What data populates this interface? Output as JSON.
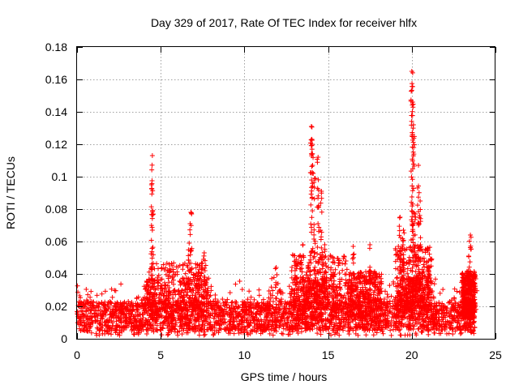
{
  "chart_data": {
    "type": "scatter",
    "title": "Day 329 of 2017, Rate Of TEC Index for receiver hlfx",
    "xlabel": "GPS time / hours",
    "ylabel": "ROTI / TECUs",
    "xlim": [
      0,
      25
    ],
    "ylim": [
      0,
      0.18
    ],
    "x_ticks": [
      0,
      5,
      10,
      15,
      20,
      25
    ],
    "y_ticks": [
      0,
      0.02,
      0.04,
      0.06,
      0.08,
      0.1,
      0.12,
      0.14,
      0.16,
      0.18
    ],
    "x_tick_labels": [
      "0",
      "5",
      "10",
      "15",
      "20",
      "25"
    ],
    "y_tick_labels": [
      "0",
      "0.02",
      "0.04",
      "0.06",
      "0.08",
      "0.1",
      "0.12",
      "0.14",
      "0.16",
      "0.18"
    ],
    "grid": true,
    "marker": "+",
    "series_color": "#ff0000",
    "x_range_of_data": [
      0,
      23.8
    ],
    "baseline_level": [
      0.005,
      0.025
    ],
    "peaks": [
      {
        "x": 4.5,
        "y": 0.113
      },
      {
        "x": 4.45,
        "y": 0.095
      },
      {
        "x": 4.5,
        "y": 0.067
      },
      {
        "x": 5.5,
        "y": 0.046
      },
      {
        "x": 6.8,
        "y": 0.078
      },
      {
        "x": 6.7,
        "y": 0.059
      },
      {
        "x": 7.6,
        "y": 0.053
      },
      {
        "x": 11.9,
        "y": 0.044
      },
      {
        "x": 13.1,
        "y": 0.049
      },
      {
        "x": 13.5,
        "y": 0.058
      },
      {
        "x": 14.0,
        "y": 0.131
      },
      {
        "x": 14.05,
        "y": 0.12
      },
      {
        "x": 14.2,
        "y": 0.099
      },
      {
        "x": 14.4,
        "y": 0.112
      },
      {
        "x": 14.6,
        "y": 0.091
      },
      {
        "x": 14.8,
        "y": 0.058
      },
      {
        "x": 15.3,
        "y": 0.047
      },
      {
        "x": 16.5,
        "y": 0.057
      },
      {
        "x": 17.5,
        "y": 0.058
      },
      {
        "x": 19.3,
        "y": 0.075
      },
      {
        "x": 19.5,
        "y": 0.067
      },
      {
        "x": 20.0,
        "y": 0.165
      },
      {
        "x": 20.05,
        "y": 0.146
      },
      {
        "x": 20.1,
        "y": 0.132
      },
      {
        "x": 20.4,
        "y": 0.107
      },
      {
        "x": 20.5,
        "y": 0.085
      },
      {
        "x": 20.2,
        "y": 0.077
      },
      {
        "x": 21.0,
        "y": 0.048
      },
      {
        "x": 23.5,
        "y": 0.064
      },
      {
        "x": 23.4,
        "y": 0.051
      }
    ]
  }
}
